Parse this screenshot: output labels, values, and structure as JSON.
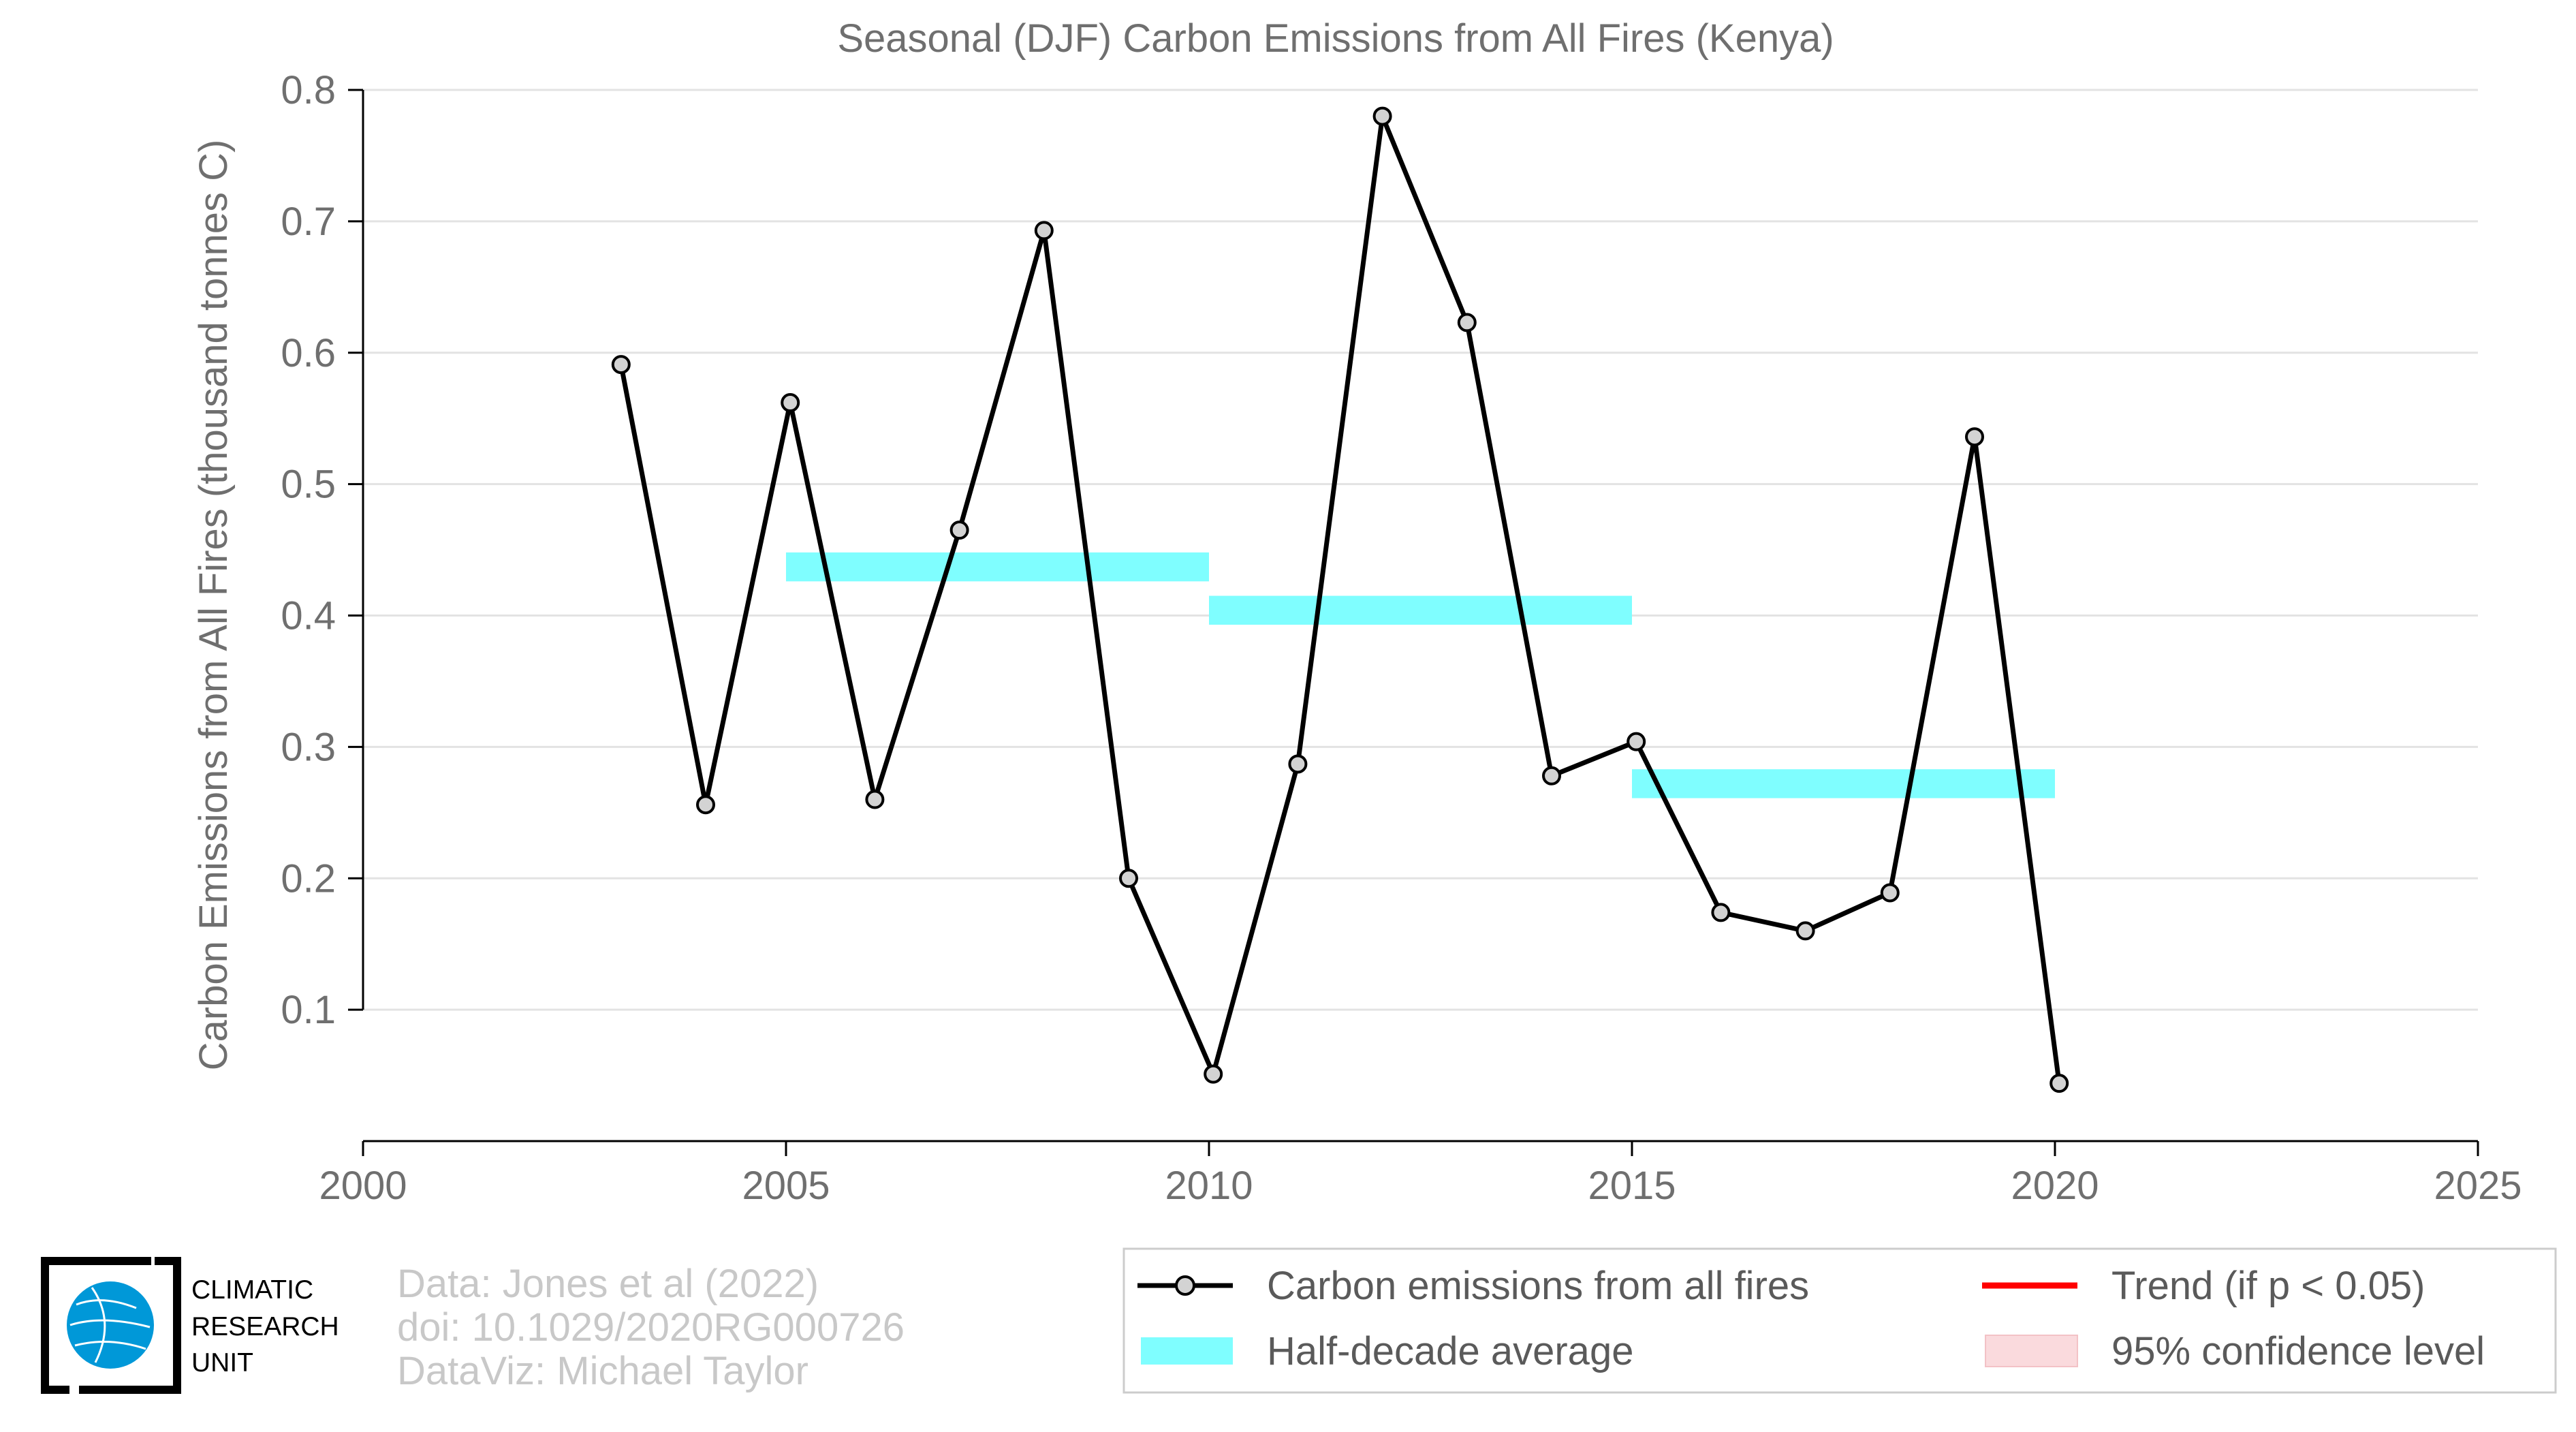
{
  "chart_data": {
    "type": "line",
    "title": "Seasonal (DJF) Carbon Emissions from All Fires (Kenya)",
    "xlabel": "",
    "ylabel": "Carbon Emissions from All Fires (thousand tonnes C)",
    "xlim": [
      2000,
      2025
    ],
    "ylim": [
      0,
      0.8
    ],
    "x_ticks": [
      2000,
      2005,
      2010,
      2015,
      2020,
      2025
    ],
    "x_tick_labels": [
      "2000",
      "2005",
      "2010",
      "2015",
      "2020",
      "2025"
    ],
    "y_ticks": [
      0.1,
      0.2,
      0.3,
      0.4,
      0.5,
      0.6,
      0.7,
      0.8
    ],
    "y_tick_labels": [
      "0.1",
      "0.2",
      "0.3",
      "0.4",
      "0.5",
      "0.6",
      "0.7",
      "0.8"
    ],
    "grid": "horizontal",
    "legend_position": "bottom-right",
    "series": [
      {
        "name": "Carbon emissions from all fires",
        "color": "#000000",
        "marker_fill": "#d3d3d3",
        "x": [
          2003,
          2004,
          2005,
          2006,
          2007,
          2008,
          2009,
          2010,
          2011,
          2012,
          2013,
          2014,
          2015,
          2016,
          2017,
          2018,
          2019,
          2020
        ],
        "y": [
          0.591,
          0.256,
          0.562,
          0.26,
          0.465,
          0.693,
          0.2,
          0.051,
          0.287,
          0.78,
          0.623,
          0.278,
          0.304,
          0.174,
          0.16,
          0.189,
          0.536,
          0.044
        ]
      }
    ],
    "half_decade_average": {
      "name": "Half-decade average",
      "color": "#7ffeff",
      "segments": [
        {
          "x_start": 2005,
          "x_end": 2010,
          "value": 0.437
        },
        {
          "x_start": 2010,
          "x_end": 2015,
          "value": 0.404
        },
        {
          "x_start": 2015,
          "x_end": 2020,
          "value": 0.272
        }
      ]
    },
    "legend": [
      {
        "label": "Carbon emissions from all fires",
        "kind": "line-marker",
        "color": "#000000"
      },
      {
        "label": "Trend (if p < 0.05)",
        "kind": "line",
        "color": "#ff0000"
      },
      {
        "label": "Half-decade average",
        "kind": "band",
        "color": "#7ffeff"
      },
      {
        "label": "95% confidence level",
        "kind": "patch",
        "color": "#fadadd"
      }
    ]
  },
  "credits": {
    "line1": "Data: Jones et al (2022)",
    "line2": "doi: 10.1029/2020RG000726",
    "line3": "DataViz: Michael Taylor"
  },
  "logo": {
    "line1": "CLIMATIC",
    "line2": "RESEARCH",
    "line3": "UNIT",
    "icon": "globe-icon",
    "color": "#0098d8"
  }
}
